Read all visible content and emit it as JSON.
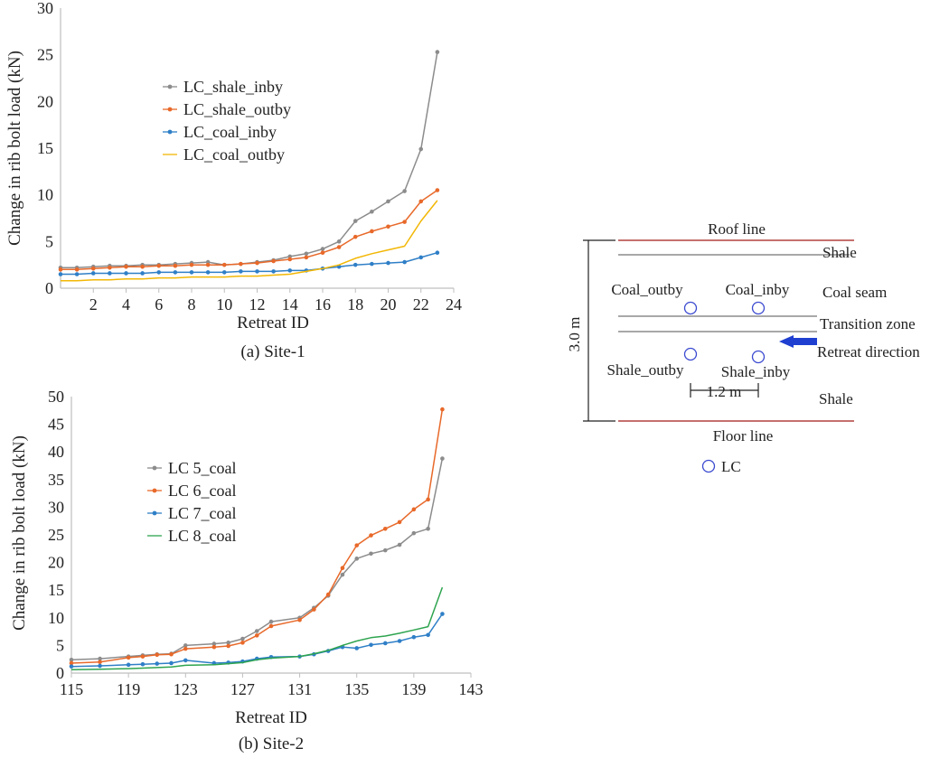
{
  "chart_data": [
    {
      "type": "line",
      "caption": "(a) Site-1",
      "xlabel": "Retreat ID",
      "ylabel": "Change in rib bolt load (kN)",
      "xlim": [
        0,
        24
      ],
      "ylim": [
        0,
        30
      ],
      "xticks": [
        2,
        4,
        6,
        8,
        10,
        12,
        14,
        16,
        18,
        20,
        22,
        24
      ],
      "yticks": [
        0,
        5,
        10,
        15,
        20,
        25,
        30
      ],
      "legend": "upper-left",
      "grid": false,
      "x": [
        0,
        1,
        2,
        3,
        4,
        5,
        6,
        7,
        8,
        9,
        10,
        11,
        12,
        13,
        14,
        15,
        16,
        17,
        18,
        19,
        20,
        21,
        22,
        23
      ],
      "series": [
        {
          "name": "LC_shale_inby",
          "color": "#8c8c8c",
          "markers": true,
          "values": [
            2.2,
            2.2,
            2.3,
            2.4,
            2.4,
            2.5,
            2.5,
            2.6,
            2.7,
            2.8,
            2.5,
            2.6,
            2.8,
            3.0,
            3.4,
            3.7,
            4.2,
            5.0,
            7.2,
            8.2,
            9.3,
            10.4,
            14.9,
            25.3
          ]
        },
        {
          "name": "LC_shale_outby",
          "color": "#e8692a",
          "markers": true,
          "values": [
            2.0,
            2.0,
            2.1,
            2.2,
            2.3,
            2.3,
            2.4,
            2.4,
            2.5,
            2.5,
            2.5,
            2.6,
            2.7,
            2.9,
            3.1,
            3.3,
            3.8,
            4.4,
            5.5,
            6.1,
            6.6,
            7.1,
            9.3,
            10.5
          ]
        },
        {
          "name": "LC_coal_inby",
          "color": "#2f7fc7",
          "markers": true,
          "values": [
            1.5,
            1.5,
            1.6,
            1.6,
            1.6,
            1.6,
            1.7,
            1.7,
            1.7,
            1.7,
            1.7,
            1.8,
            1.8,
            1.8,
            1.9,
            1.9,
            2.1,
            2.3,
            2.5,
            2.6,
            2.7,
            2.8,
            3.3,
            3.8
          ]
        },
        {
          "name": "LC_coal_outby",
          "color": "#f2b705",
          "markers": false,
          "values": [
            0.8,
            0.8,
            0.9,
            0.9,
            1.0,
            1.0,
            1.1,
            1.1,
            1.2,
            1.2,
            1.2,
            1.3,
            1.3,
            1.4,
            1.5,
            1.8,
            2.1,
            2.5,
            3.2,
            3.7,
            4.1,
            4.5,
            7.2,
            9.4
          ]
        }
      ]
    },
    {
      "type": "line",
      "caption": "(b) Site-2",
      "xlabel": "Retreat ID",
      "ylabel": "Change in rib bolt load (kN)",
      "xlim": [
        115,
        143
      ],
      "ylim": [
        0,
        50
      ],
      "xticks": [
        115,
        119,
        123,
        127,
        131,
        135,
        139,
        143
      ],
      "yticks": [
        0,
        5,
        10,
        15,
        20,
        25,
        30,
        35,
        40,
        45,
        50
      ],
      "legend": "upper-left",
      "grid": false,
      "x": [
        115,
        117,
        119,
        120,
        121,
        122,
        123,
        125,
        126,
        127,
        128,
        129,
        131,
        132,
        133,
        134,
        135,
        136,
        137,
        138,
        139,
        140,
        141
      ],
      "series": [
        {
          "name": "LC 5_coal",
          "color": "#8c8c8c",
          "markers": true,
          "values": [
            2.4,
            2.6,
            3.0,
            3.2,
            3.4,
            3.5,
            5.0,
            5.3,
            5.5,
            6.2,
            7.6,
            9.3,
            10.0,
            11.8,
            14.0,
            17.8,
            20.7,
            21.6,
            22.2,
            23.2,
            25.3,
            26.1,
            38.8
          ]
        },
        {
          "name": "LC 6_coal",
          "color": "#e8692a",
          "markers": true,
          "values": [
            1.8,
            2.0,
            2.8,
            3.0,
            3.3,
            3.4,
            4.4,
            4.7,
            4.9,
            5.5,
            6.8,
            8.5,
            9.6,
            11.5,
            14.2,
            19.0,
            23.1,
            24.9,
            26.1,
            27.3,
            29.6,
            31.4,
            47.7
          ]
        },
        {
          "name": "LC 7_coal",
          "color": "#2f7fc7",
          "markers": true,
          "values": [
            1.2,
            1.3,
            1.5,
            1.6,
            1.7,
            1.8,
            2.3,
            1.8,
            1.9,
            2.1,
            2.6,
            2.9,
            3.0,
            3.4,
            4.0,
            4.7,
            4.5,
            5.1,
            5.4,
            5.8,
            6.5,
            6.9,
            10.7
          ]
        },
        {
          "name": "LC 8_coal",
          "color": "#2ea44f",
          "markers": false,
          "values": [
            0.6,
            0.7,
            0.8,
            0.9,
            1.0,
            1.1,
            1.4,
            1.5,
            1.7,
            1.9,
            2.4,
            2.7,
            3.0,
            3.5,
            4.1,
            5.0,
            5.8,
            6.4,
            6.7,
            7.2,
            7.8,
            8.4,
            15.5
          ]
        }
      ]
    }
  ],
  "schematic": {
    "roof_line": "Roof line",
    "floor_line": "Floor line",
    "shale_top": "Shale",
    "coal_seam": "Coal seam",
    "transition_zone": "Transition zone",
    "retreat_direction": "Retreat direction",
    "shale_bottom": "Shale",
    "height": "3.0 m",
    "spacing": "1.2 m",
    "coal_outby": "Coal_outby",
    "coal_inby": "Coal_inby",
    "shale_outby": "Shale_outby",
    "shale_inby": "Shale_inby",
    "lc_legend": "LC",
    "colors": {
      "boundary": "#b0413e",
      "gray_line": "#8c8c8c",
      "lc_marker": "#3b4ad0",
      "arrow": "#1f3fd1"
    }
  }
}
